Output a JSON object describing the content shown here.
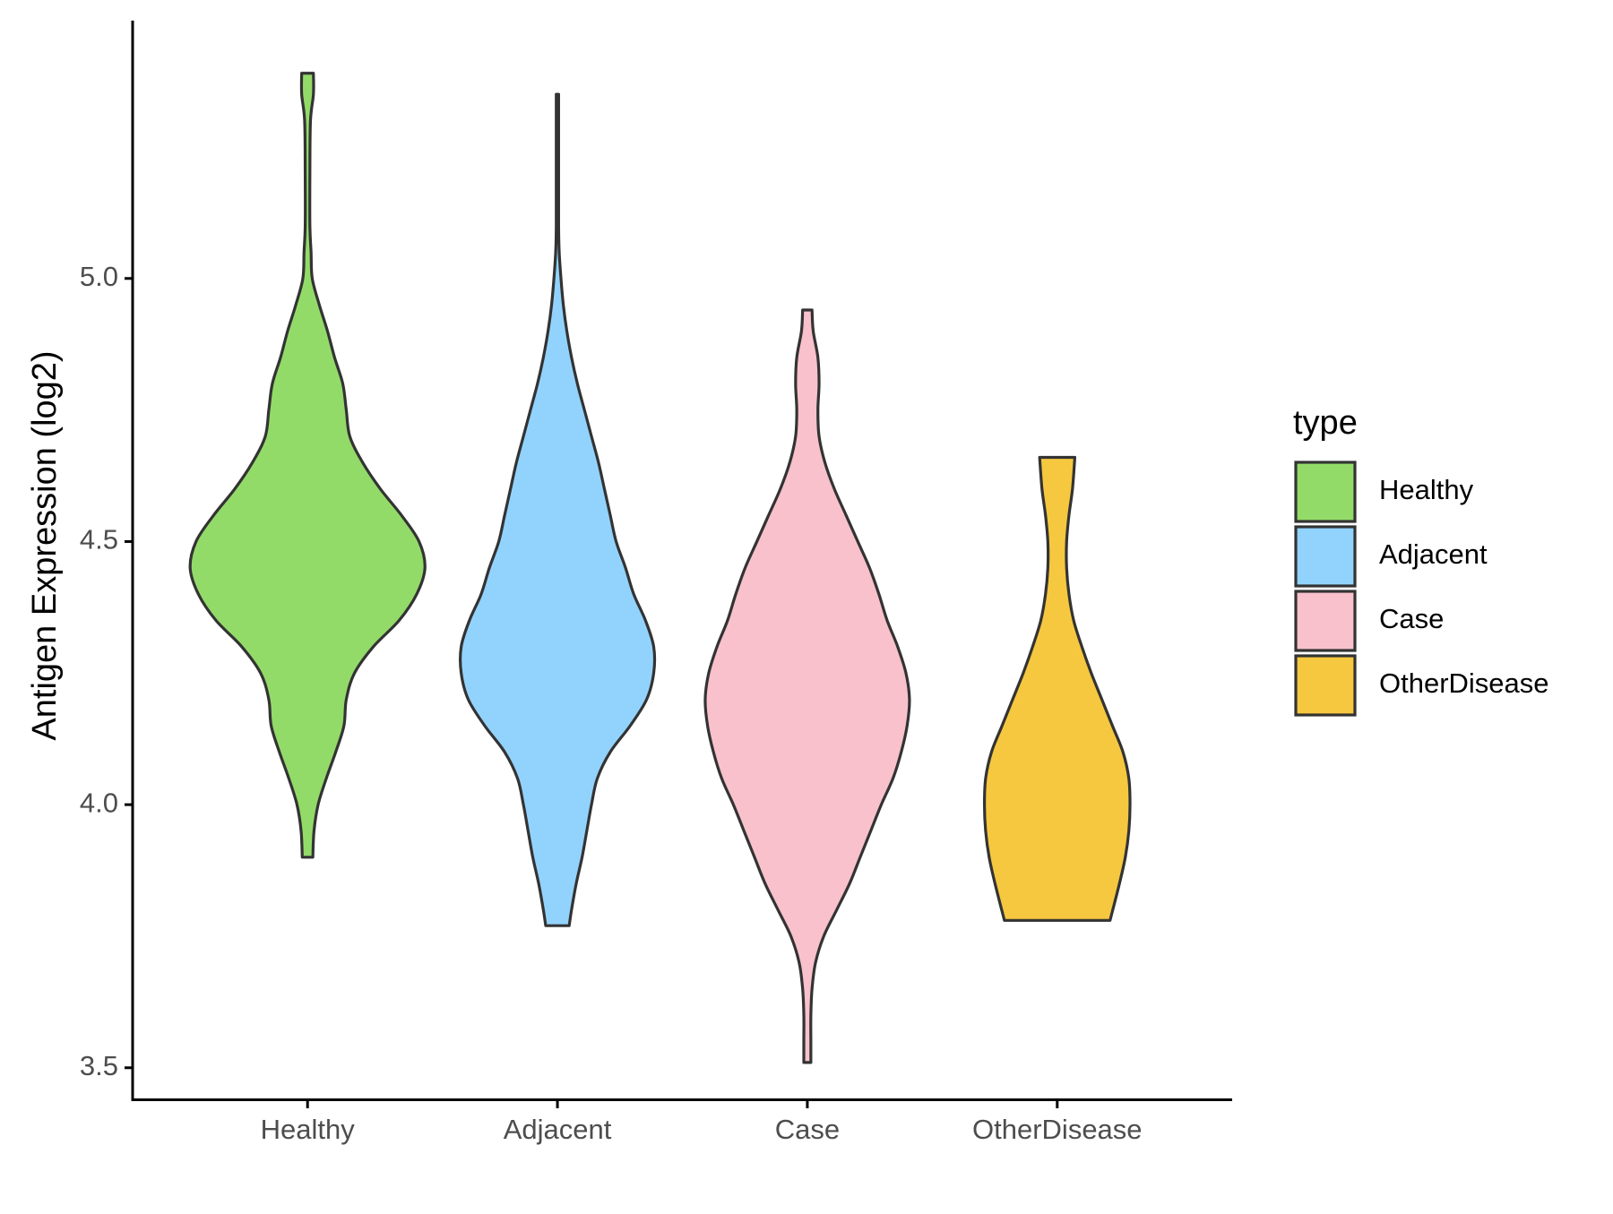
{
  "chart_data": {
    "type": "violin",
    "title": "",
    "xlabel": "",
    "ylabel": "Antigen Expression (log2)",
    "ylim": [
      3.44,
      5.49
    ],
    "yticks": [
      3.5,
      4.0,
      4.5,
      5.0
    ],
    "ytick_labels": [
      "3.5",
      "4.0",
      "4.5",
      "5.0"
    ],
    "categories": [
      "Healthy",
      "Adjacent",
      "Case",
      "OtherDisease"
    ],
    "colors": {
      "Healthy": "#93DB69",
      "Adjacent": "#92D3FE",
      "Case": "#F8C1CC",
      "OtherDisease": "#F6C83F"
    },
    "outline_color": "#333333",
    "violins": [
      {
        "category": "Healthy",
        "min": 3.9,
        "max": 5.39,
        "density": [
          [
            3.9,
            0.045
          ],
          [
            3.95,
            0.055
          ],
          [
            4.0,
            0.09
          ],
          [
            4.05,
            0.16
          ],
          [
            4.1,
            0.24
          ],
          [
            4.15,
            0.31
          ],
          [
            4.2,
            0.33
          ],
          [
            4.25,
            0.4
          ],
          [
            4.3,
            0.56
          ],
          [
            4.35,
            0.78
          ],
          [
            4.4,
            0.93
          ],
          [
            4.45,
            1.0
          ],
          [
            4.5,
            0.95
          ],
          [
            4.55,
            0.8
          ],
          [
            4.6,
            0.62
          ],
          [
            4.65,
            0.47
          ],
          [
            4.7,
            0.36
          ],
          [
            4.75,
            0.33
          ],
          [
            4.8,
            0.3
          ],
          [
            4.85,
            0.23
          ],
          [
            4.9,
            0.17
          ],
          [
            4.95,
            0.1
          ],
          [
            5.0,
            0.04
          ],
          [
            5.05,
            0.03
          ],
          [
            5.1,
            0.02
          ],
          [
            5.2,
            0.02
          ],
          [
            5.3,
            0.025
          ],
          [
            5.35,
            0.05
          ],
          [
            5.39,
            0.05
          ]
        ]
      },
      {
        "category": "Adjacent",
        "min": 3.77,
        "max": 5.35,
        "density": [
          [
            3.77,
            0.1
          ],
          [
            3.8,
            0.12
          ],
          [
            3.85,
            0.16
          ],
          [
            3.9,
            0.21
          ],
          [
            3.95,
            0.25
          ],
          [
            4.0,
            0.29
          ],
          [
            4.05,
            0.34
          ],
          [
            4.1,
            0.45
          ],
          [
            4.15,
            0.62
          ],
          [
            4.2,
            0.76
          ],
          [
            4.25,
            0.82
          ],
          [
            4.3,
            0.82
          ],
          [
            4.35,
            0.75
          ],
          [
            4.4,
            0.65
          ],
          [
            4.45,
            0.58
          ],
          [
            4.5,
            0.5
          ],
          [
            4.55,
            0.45
          ],
          [
            4.6,
            0.4
          ],
          [
            4.65,
            0.35
          ],
          [
            4.7,
            0.29
          ],
          [
            4.75,
            0.23
          ],
          [
            4.8,
            0.17
          ],
          [
            4.85,
            0.12
          ],
          [
            4.9,
            0.08
          ],
          [
            4.95,
            0.05
          ],
          [
            5.0,
            0.03
          ],
          [
            5.05,
            0.015
          ],
          [
            5.1,
            0.01
          ],
          [
            5.2,
            0.01
          ],
          [
            5.35,
            0.01
          ]
        ]
      },
      {
        "category": "Case",
        "min": 3.51,
        "max": 4.94,
        "density": [
          [
            3.51,
            0.03
          ],
          [
            3.55,
            0.03
          ],
          [
            3.6,
            0.03
          ],
          [
            3.65,
            0.04
          ],
          [
            3.7,
            0.07
          ],
          [
            3.75,
            0.14
          ],
          [
            3.8,
            0.25
          ],
          [
            3.85,
            0.36
          ],
          [
            3.9,
            0.45
          ],
          [
            3.95,
            0.54
          ],
          [
            4.0,
            0.63
          ],
          [
            4.05,
            0.73
          ],
          [
            4.1,
            0.8
          ],
          [
            4.15,
            0.85
          ],
          [
            4.2,
            0.87
          ],
          [
            4.25,
            0.84
          ],
          [
            4.3,
            0.77
          ],
          [
            4.35,
            0.68
          ],
          [
            4.4,
            0.61
          ],
          [
            4.45,
            0.53
          ],
          [
            4.5,
            0.43
          ],
          [
            4.55,
            0.33
          ],
          [
            4.6,
            0.23
          ],
          [
            4.65,
            0.15
          ],
          [
            4.7,
            0.1
          ],
          [
            4.75,
            0.09
          ],
          [
            4.8,
            0.1
          ],
          [
            4.85,
            0.09
          ],
          [
            4.9,
            0.05
          ],
          [
            4.94,
            0.04
          ]
        ]
      },
      {
        "category": "OtherDisease",
        "min": 3.78,
        "max": 4.66,
        "density": [
          [
            3.78,
            0.45
          ],
          [
            3.85,
            0.53
          ],
          [
            3.9,
            0.58
          ],
          [
            3.95,
            0.61
          ],
          [
            4.0,
            0.62
          ],
          [
            4.05,
            0.61
          ],
          [
            4.1,
            0.56
          ],
          [
            4.15,
            0.47
          ],
          [
            4.2,
            0.38
          ],
          [
            4.25,
            0.29
          ],
          [
            4.3,
            0.21
          ],
          [
            4.35,
            0.14
          ],
          [
            4.4,
            0.1
          ],
          [
            4.45,
            0.08
          ],
          [
            4.5,
            0.08
          ],
          [
            4.55,
            0.1
          ],
          [
            4.6,
            0.13
          ],
          [
            4.66,
            0.15
          ]
        ]
      }
    ],
    "legend": {
      "title": "type",
      "position": "right",
      "items": [
        "Healthy",
        "Adjacent",
        "Case",
        "OtherDisease"
      ]
    }
  }
}
